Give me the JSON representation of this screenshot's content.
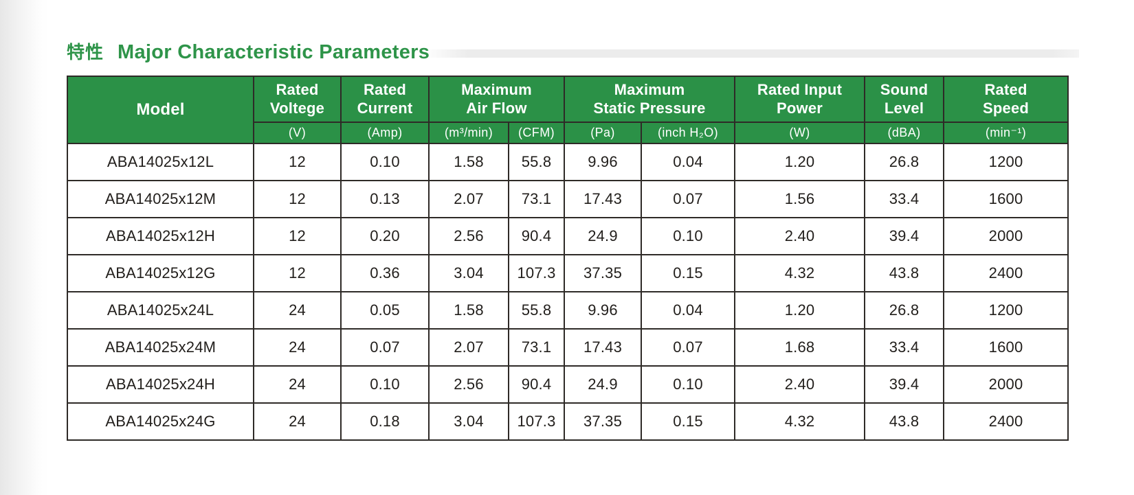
{
  "page": {
    "title_zh": "特性",
    "title_en": "Major Characteristic Parameters"
  },
  "table": {
    "header": {
      "model": "Model",
      "groups": [
        {
          "label": "Rated\nVoltege"
        },
        {
          "label": "Rated\nCurrent"
        },
        {
          "label": "Maximum\nAir Flow",
          "colspan": 2
        },
        {
          "label": "Maximum\nStatic Pressure",
          "colspan": 2
        },
        {
          "label": "Rated Input\nPower"
        },
        {
          "label": "Sound\nLevel"
        },
        {
          "label": "Rated\nSpeed"
        }
      ],
      "units": [
        "(V)",
        "(Amp)",
        "(m³/min)",
        "(CFM)",
        "(Pa)",
        "(inch H₂O)",
        "(W)",
        "(dBA)",
        "(min⁻¹)"
      ]
    },
    "rows": [
      [
        "ABA14025x12L",
        "12",
        "0.10",
        "1.58",
        "55.8",
        "9.96",
        "0.04",
        "1.20",
        "26.8",
        "1200"
      ],
      [
        "ABA14025x12M",
        "12",
        "0.13",
        "2.07",
        "73.1",
        "17.43",
        "0.07",
        "1.56",
        "33.4",
        "1600"
      ],
      [
        "ABA14025x12H",
        "12",
        "0.20",
        "2.56",
        "90.4",
        "24.9",
        "0.10",
        "2.40",
        "39.4",
        "2000"
      ],
      [
        "ABA14025x12G",
        "12",
        "0.36",
        "3.04",
        "107.3",
        "37.35",
        "0.15",
        "4.32",
        "43.8",
        "2400"
      ],
      [
        "ABA14025x24L",
        "24",
        "0.05",
        "1.58",
        "55.8",
        "9.96",
        "0.04",
        "1.20",
        "26.8",
        "1200"
      ],
      [
        "ABA14025x24M",
        "24",
        "0.07",
        "2.07",
        "73.1",
        "17.43",
        "0.07",
        "1.68",
        "33.4",
        "1600"
      ],
      [
        "ABA14025x24H",
        "24",
        "0.10",
        "2.56",
        "90.4",
        "24.9",
        "0.10",
        "2.40",
        "39.4",
        "2000"
      ],
      [
        "ABA14025x24G",
        "24",
        "0.18",
        "3.04",
        "107.3",
        "37.35",
        "0.15",
        "4.32",
        "43.8",
        "2400"
      ]
    ]
  },
  "colors": {
    "header_green": "#2B9147",
    "title_green": "#2E9449"
  }
}
